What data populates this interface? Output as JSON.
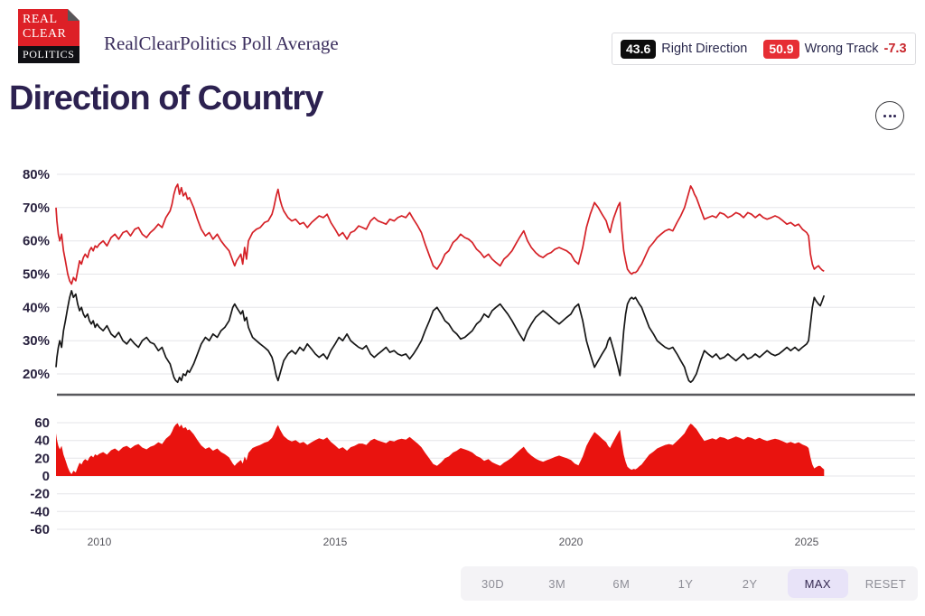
{
  "header": {
    "logo": {
      "line1": "REAL",
      "line2": "CLEAR",
      "line3": "POLITICS"
    },
    "subtitle": "RealClearPolitics Poll Average",
    "title": "Direction of Country"
  },
  "legend": {
    "right_direction": {
      "value": "43.6",
      "label": "Right Direction"
    },
    "wrong_track": {
      "value": "50.9",
      "label": "Wrong Track"
    },
    "spread": "-7.3"
  },
  "buttons": {
    "ranges": [
      "30D",
      "3M",
      "6M",
      "1Y",
      "2Y",
      "MAX",
      "RESET"
    ],
    "active_index": 5
  },
  "colors": {
    "right_line": "#161616",
    "wrong_line": "#d52026",
    "spread_fill": "#e9130f",
    "grid": "#e6e6e9",
    "axis_line": "#58585c",
    "axis_text": "#29223f",
    "tick_text": "#55555c"
  },
  "chart_data": {
    "type": "line",
    "title": "Direction of Country",
    "series_labels": [
      "Right Direction",
      "Wrong Track"
    ],
    "x_unit": "year",
    "xticks": [
      2010,
      2015,
      2020,
      2025
    ],
    "main": {
      "ymin": 20,
      "ymax": 80,
      "yticks": [
        [
          80,
          "80%"
        ],
        [
          70,
          "70%"
        ],
        [
          60,
          "60%"
        ],
        [
          50,
          "50%"
        ],
        [
          40,
          "40%"
        ],
        [
          30,
          "30%"
        ],
        [
          20,
          "20%"
        ]
      ]
    },
    "spread": {
      "ymin": -60,
      "ymax": 60,
      "definition": "wrong_minus_right",
      "yticks": [
        [
          60,
          "60"
        ],
        [
          40,
          "40"
        ],
        [
          20,
          "20"
        ],
        [
          0,
          "0"
        ],
        [
          -20,
          "-20"
        ],
        [
          -40,
          "-40"
        ],
        [
          -60,
          "-60"
        ]
      ]
    },
    "current": {
      "right": 43.6,
      "wrong": 50.9,
      "spread": -7.3
    },
    "points": [
      [
        2009.08,
        22,
        70
      ],
      [
        2009.1,
        25,
        66
      ],
      [
        2009.13,
        28,
        62
      ],
      [
        2009.16,
        30,
        60
      ],
      [
        2009.2,
        28,
        62
      ],
      [
        2009.24,
        33,
        57
      ],
      [
        2009.28,
        36,
        54
      ],
      [
        2009.33,
        40,
        50
      ],
      [
        2009.37,
        43,
        48
      ],
      [
        2009.41,
        45,
        47
      ],
      [
        2009.45,
        43,
        49
      ],
      [
        2009.5,
        44,
        48
      ],
      [
        2009.54,
        41,
        51
      ],
      [
        2009.58,
        39,
        54
      ],
      [
        2009.62,
        40,
        53
      ],
      [
        2009.66,
        38,
        55
      ],
      [
        2009.7,
        37,
        56
      ],
      [
        2009.75,
        38,
        55
      ],
      [
        2009.79,
        36,
        57
      ],
      [
        2009.83,
        35,
        58
      ],
      [
        2009.87,
        36,
        57
      ],
      [
        2009.91,
        34,
        58.5
      ],
      [
        2009.95,
        35,
        58
      ],
      [
        2010,
        34,
        59
      ],
      [
        2010.08,
        33,
        60
      ],
      [
        2010.16,
        34.5,
        58.5
      ],
      [
        2010.25,
        32,
        61
      ],
      [
        2010.33,
        31,
        62
      ],
      [
        2010.41,
        32.5,
        60.5
      ],
      [
        2010.5,
        30,
        62.5
      ],
      [
        2010.58,
        29,
        63
      ],
      [
        2010.66,
        30.5,
        61.5
      ],
      [
        2010.75,
        29,
        63.5
      ],
      [
        2010.83,
        28,
        64
      ],
      [
        2010.91,
        30,
        62
      ],
      [
        2011,
        31,
        61
      ],
      [
        2011.08,
        29.5,
        62.5
      ],
      [
        2011.16,
        29,
        63.5
      ],
      [
        2011.25,
        27,
        65
      ],
      [
        2011.33,
        28,
        64
      ],
      [
        2011.41,
        25,
        67
      ],
      [
        2011.5,
        23,
        69
      ],
      [
        2011.54,
        21,
        71
      ],
      [
        2011.58,
        19,
        74
      ],
      [
        2011.62,
        18,
        76
      ],
      [
        2011.66,
        17.5,
        77
      ],
      [
        2011.7,
        19,
        74
      ],
      [
        2011.74,
        18,
        76
      ],
      [
        2011.78,
        20,
        73.5
      ],
      [
        2011.83,
        19.5,
        74.5
      ],
      [
        2011.87,
        21,
        72.5
      ],
      [
        2011.91,
        20.5,
        73
      ],
      [
        2012,
        23,
        70
      ],
      [
        2012.08,
        26,
        66.5
      ],
      [
        2012.16,
        29,
        63.5
      ],
      [
        2012.25,
        31,
        61.5
      ],
      [
        2012.33,
        30,
        62.5
      ],
      [
        2012.41,
        32,
        60.5
      ],
      [
        2012.5,
        31,
        62
      ],
      [
        2012.58,
        33,
        60
      ],
      [
        2012.66,
        34,
        58.5
      ],
      [
        2012.75,
        36,
        57
      ],
      [
        2012.83,
        40,
        54
      ],
      [
        2012.87,
        41,
        52.5
      ],
      [
        2012.91,
        40,
        54
      ],
      [
        2013,
        38,
        56
      ],
      [
        2013.04,
        39,
        53
      ],
      [
        2013.08,
        36,
        58
      ],
      [
        2013.12,
        37,
        54.5
      ],
      [
        2013.16,
        34,
        60
      ],
      [
        2013.25,
        31,
        62.5
      ],
      [
        2013.33,
        30,
        63.5
      ],
      [
        2013.41,
        29,
        64
      ],
      [
        2013.5,
        28,
        65.5
      ],
      [
        2013.58,
        27,
        66
      ],
      [
        2013.66,
        25,
        68
      ],
      [
        2013.7,
        23,
        70
      ],
      [
        2013.75,
        19.5,
        73.5
      ],
      [
        2013.79,
        18,
        75.5
      ],
      [
        2013.83,
        20,
        72.5
      ],
      [
        2013.87,
        22,
        70.5
      ],
      [
        2013.91,
        24,
        69
      ],
      [
        2014,
        26,
        67
      ],
      [
        2014.08,
        27,
        66
      ],
      [
        2014.16,
        26,
        66.5
      ],
      [
        2014.25,
        28,
        65
      ],
      [
        2014.33,
        27,
        65.5
      ],
      [
        2014.41,
        29,
        64
      ],
      [
        2014.5,
        27.5,
        65.5
      ],
      [
        2014.58,
        26,
        66.5
      ],
      [
        2014.66,
        25,
        67.5
      ],
      [
        2014.75,
        26,
        67
      ],
      [
        2014.83,
        24.5,
        68
      ],
      [
        2014.91,
        27,
        65.5
      ],
      [
        2015,
        29,
        63.5
      ],
      [
        2015.08,
        31,
        61.5
      ],
      [
        2015.16,
        30,
        62.5
      ],
      [
        2015.25,
        32,
        60.5
      ],
      [
        2015.33,
        30,
        62.5
      ],
      [
        2015.41,
        29,
        63
      ],
      [
        2015.5,
        28,
        64.5
      ],
      [
        2015.58,
        27.5,
        64
      ],
      [
        2015.66,
        28.5,
        63.5
      ],
      [
        2015.75,
        26,
        66
      ],
      [
        2015.83,
        25,
        67
      ],
      [
        2015.91,
        26,
        66
      ],
      [
        2016,
        27,
        65.5
      ],
      [
        2016.08,
        28,
        65
      ],
      [
        2016.16,
        26.5,
        66.5
      ],
      [
        2016.25,
        27,
        66
      ],
      [
        2016.33,
        26,
        67
      ],
      [
        2016.41,
        25.5,
        67.5
      ],
      [
        2016.5,
        26,
        67
      ],
      [
        2016.58,
        24.5,
        68.5
      ],
      [
        2016.66,
        26,
        66.5
      ],
      [
        2016.75,
        28,
        64.5
      ],
      [
        2016.83,
        30,
        62.5
      ],
      [
        2016.91,
        33,
        59
      ],
      [
        2017,
        36,
        55.5
      ],
      [
        2017.08,
        39,
        52.5
      ],
      [
        2017.16,
        40,
        51.5
      ],
      [
        2017.25,
        38,
        53.5
      ],
      [
        2017.33,
        36,
        56
      ],
      [
        2017.41,
        35,
        57
      ],
      [
        2017.5,
        33,
        59.5
      ],
      [
        2017.58,
        32,
        60.5
      ],
      [
        2017.66,
        30.5,
        62
      ],
      [
        2017.75,
        31,
        61
      ],
      [
        2017.83,
        32,
        60.5
      ],
      [
        2017.91,
        33,
        59.5
      ],
      [
        2018,
        35,
        57.5
      ],
      [
        2018.08,
        36,
        56.5
      ],
      [
        2018.16,
        38,
        55
      ],
      [
        2018.25,
        37,
        56
      ],
      [
        2018.33,
        39,
        54.5
      ],
      [
        2018.41,
        40,
        53.5
      ],
      [
        2018.5,
        41,
        52.5
      ],
      [
        2018.58,
        39.5,
        54.5
      ],
      [
        2018.66,
        38,
        55.5
      ],
      [
        2018.75,
        36,
        57
      ],
      [
        2018.83,
        34,
        59
      ],
      [
        2018.91,
        32,
        61
      ],
      [
        2019,
        30,
        63
      ],
      [
        2019.08,
        33,
        60
      ],
      [
        2019.16,
        35,
        58
      ],
      [
        2019.25,
        37,
        56.5
      ],
      [
        2019.33,
        38,
        55.5
      ],
      [
        2019.41,
        39,
        55
      ],
      [
        2019.5,
        38,
        56
      ],
      [
        2019.58,
        37,
        56.5
      ],
      [
        2019.66,
        36,
        57.5
      ],
      [
        2019.75,
        35,
        58
      ],
      [
        2019.83,
        36,
        57.5
      ],
      [
        2019.91,
        37,
        57
      ],
      [
        2020,
        38,
        56
      ],
      [
        2020.08,
        40,
        54
      ],
      [
        2020.16,
        41,
        53
      ],
      [
        2020.25,
        36,
        58
      ],
      [
        2020.33,
        30,
        64
      ],
      [
        2020.41,
        26,
        68
      ],
      [
        2020.5,
        22,
        71.5
      ],
      [
        2020.58,
        24,
        70
      ],
      [
        2020.66,
        26,
        68
      ],
      [
        2020.75,
        28,
        66
      ],
      [
        2020.79,
        30,
        64
      ],
      [
        2020.83,
        31,
        62.5
      ],
      [
        2020.87,
        29,
        65
      ],
      [
        2020.91,
        27,
        67
      ],
      [
        2021,
        22,
        70.5
      ],
      [
        2021.04,
        19.5,
        71.5
      ],
      [
        2021.08,
        26,
        63
      ],
      [
        2021.12,
        33,
        57
      ],
      [
        2021.16,
        38,
        54
      ],
      [
        2021.2,
        41,
        51.5
      ],
      [
        2021.25,
        42.5,
        50.5
      ],
      [
        2021.29,
        43,
        50
      ],
      [
        2021.33,
        42.5,
        50.5
      ],
      [
        2021.37,
        43,
        50.5
      ],
      [
        2021.41,
        42,
        51
      ],
      [
        2021.45,
        41,
        52
      ],
      [
        2021.5,
        40,
        53
      ],
      [
        2021.58,
        37,
        55.5
      ],
      [
        2021.66,
        34,
        58
      ],
      [
        2021.75,
        32,
        59.5
      ],
      [
        2021.83,
        30,
        61
      ],
      [
        2021.91,
        29,
        62
      ],
      [
        2022,
        28,
        63
      ],
      [
        2022.08,
        27.5,
        63.5
      ],
      [
        2022.16,
        28,
        63
      ],
      [
        2022.25,
        26,
        65.5
      ],
      [
        2022.33,
        24,
        67.5
      ],
      [
        2022.41,
        22,
        70
      ],
      [
        2022.45,
        20,
        72
      ],
      [
        2022.5,
        18,
        74.5
      ],
      [
        2022.54,
        17.5,
        76.5
      ],
      [
        2022.58,
        18,
        75.5
      ],
      [
        2022.62,
        19,
        74
      ],
      [
        2022.66,
        20,
        73
      ],
      [
        2022.75,
        24,
        69.5
      ],
      [
        2022.83,
        27,
        66.5
      ],
      [
        2022.91,
        26,
        67
      ],
      [
        2023,
        25,
        67.5
      ],
      [
        2023.08,
        26,
        67
      ],
      [
        2023.16,
        24.5,
        68.5
      ],
      [
        2023.25,
        25,
        68
      ],
      [
        2023.33,
        26,
        67
      ],
      [
        2023.41,
        25,
        67.5
      ],
      [
        2023.5,
        24,
        68.5
      ],
      [
        2023.58,
        25,
        68
      ],
      [
        2023.66,
        26,
        67
      ],
      [
        2023.75,
        24.5,
        68.5
      ],
      [
        2023.83,
        25,
        68
      ],
      [
        2023.91,
        26,
        67
      ],
      [
        2024,
        25,
        68
      ],
      [
        2024.08,
        26,
        67
      ],
      [
        2024.16,
        27,
        66.5
      ],
      [
        2024.25,
        26,
        67
      ],
      [
        2024.33,
        25.5,
        67.5
      ],
      [
        2024.41,
        26,
        67
      ],
      [
        2024.5,
        27,
        66
      ],
      [
        2024.58,
        28,
        65
      ],
      [
        2024.66,
        27,
        65.5
      ],
      [
        2024.75,
        28,
        64.5
      ],
      [
        2024.83,
        27,
        65
      ],
      [
        2024.91,
        28,
        63.5
      ],
      [
        2025,
        29,
        62.5
      ],
      [
        2025.04,
        30,
        61.5
      ],
      [
        2025.08,
        35,
        56
      ],
      [
        2025.12,
        40,
        53
      ],
      [
        2025.16,
        43,
        51.5
      ],
      [
        2025.2,
        42,
        52
      ],
      [
        2025.25,
        41,
        52.5
      ],
      [
        2025.29,
        40.5,
        51.8
      ],
      [
        2025.33,
        42,
        51.2
      ],
      [
        2025.37,
        43.6,
        50.9
      ]
    ]
  }
}
